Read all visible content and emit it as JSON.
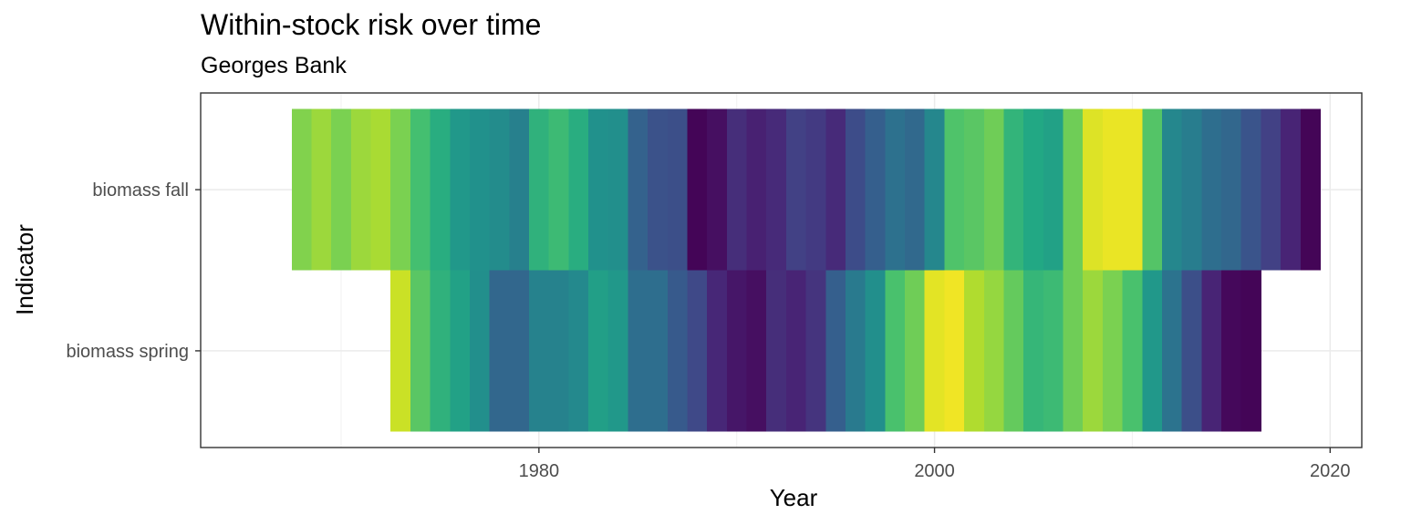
{
  "chart_data": {
    "type": "heatmap",
    "title": "Within-stock risk over time",
    "subtitle": "Georges Bank",
    "xlabel": "Year",
    "ylabel": "Indicator",
    "xlim": [
      1962.9,
      2021.6
    ],
    "x_ticks": [
      1980,
      2000,
      2020
    ],
    "grid": true,
    "legend": "none",
    "colormap": "viridis",
    "value_scale": "0-1 relative risk",
    "rows": [
      {
        "indicator": "biomass spring",
        "start_year": 1973,
        "values": [
          0.92,
          0.74,
          0.64,
          0.57,
          0.49,
          0.33,
          0.33,
          0.44,
          0.44,
          0.47,
          0.56,
          0.53,
          0.36,
          0.36,
          0.28,
          0.22,
          0.11,
          0.06,
          0.04,
          0.13,
          0.1,
          0.15,
          0.3,
          0.41,
          0.49,
          0.71,
          0.78,
          0.96,
          0.98,
          0.88,
          0.84,
          0.76,
          0.66,
          0.68,
          0.78,
          0.85,
          0.8,
          0.71,
          0.53,
          0.38,
          0.24,
          0.1,
          0.02,
          0.01
        ]
      },
      {
        "indicator": "biomass fall",
        "start_year": 1968,
        "values": [
          0.81,
          0.85,
          0.8,
          0.85,
          0.87,
          0.8,
          0.7,
          0.62,
          0.53,
          0.5,
          0.48,
          0.43,
          0.64,
          0.68,
          0.62,
          0.5,
          0.49,
          0.31,
          0.25,
          0.24,
          0.01,
          0.04,
          0.13,
          0.09,
          0.12,
          0.19,
          0.17,
          0.12,
          0.23,
          0.3,
          0.37,
          0.34,
          0.46,
          0.72,
          0.74,
          0.78,
          0.65,
          0.6,
          0.57,
          0.78,
          0.95,
          0.97,
          0.97,
          0.73,
          0.46,
          0.42,
          0.36,
          0.33,
          0.26,
          0.19,
          0.1,
          0.01
        ]
      }
    ]
  }
}
